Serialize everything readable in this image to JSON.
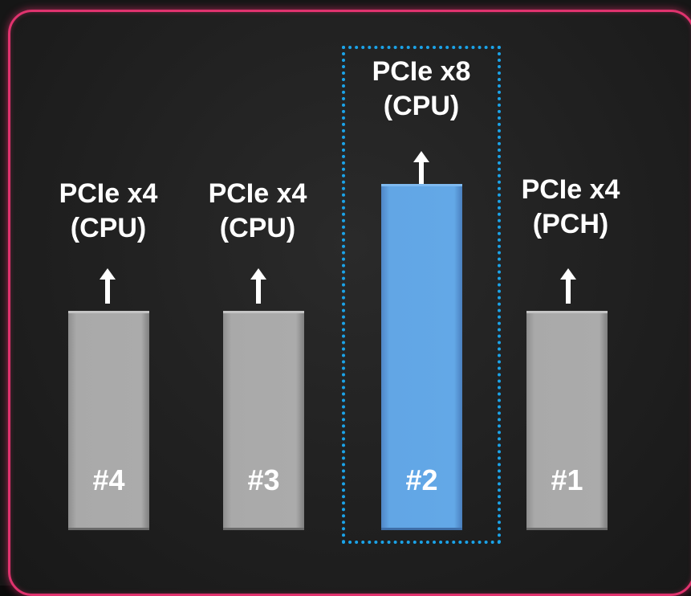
{
  "colors": {
    "frame_border": "#e0336e",
    "background": "#202020",
    "slot_gray": "#ababab",
    "slot_blue": "#63a8e7",
    "highlight_border": "#1ba3e8",
    "text": "#ffffff"
  },
  "slots": [
    {
      "number": "#4",
      "label_line1": "PCIe x4",
      "label_line2": "(CPU)",
      "color": "gray",
      "highlighted": false
    },
    {
      "number": "#3",
      "label_line1": "PCIe x4",
      "label_line2": "(CPU)",
      "color": "gray",
      "highlighted": false
    },
    {
      "number": "#2",
      "label_line1": "PCIe x8",
      "label_line2": "(CPU)",
      "color": "blue",
      "highlighted": true
    },
    {
      "number": "#1",
      "label_line1": "PCIe x4",
      "label_line2": "(PCH)",
      "color": "gray",
      "highlighted": false
    }
  ]
}
